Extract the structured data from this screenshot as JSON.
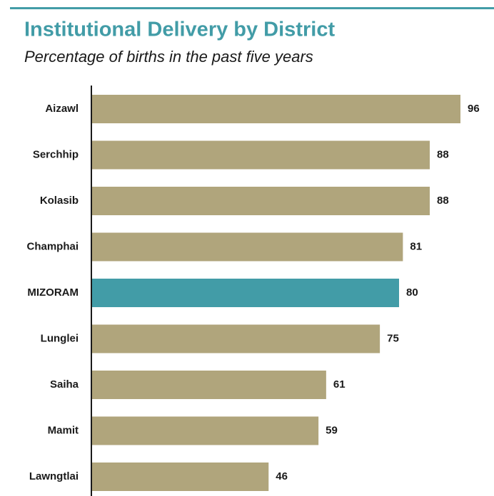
{
  "chart_data": {
    "type": "hbar",
    "title": "Institutional Delivery by District",
    "subtitle": "Percentage of births in the past five years",
    "categories": [
      "Aizawl",
      "Serchhip",
      "Kolasib",
      "Champhai",
      "MIZORAM",
      "Lunglei",
      "Saiha",
      "Mamit",
      "Lawngtlai"
    ],
    "values": [
      96,
      88,
      88,
      81,
      80,
      75,
      61,
      59,
      46
    ],
    "colors": [
      "#b0a57c",
      "#b0a57c",
      "#b0a57c",
      "#b0a57c",
      "#429ca7",
      "#b0a57c",
      "#b0a57c",
      "#b0a57c",
      "#b0a57c"
    ],
    "xlim": [
      0,
      100
    ]
  }
}
